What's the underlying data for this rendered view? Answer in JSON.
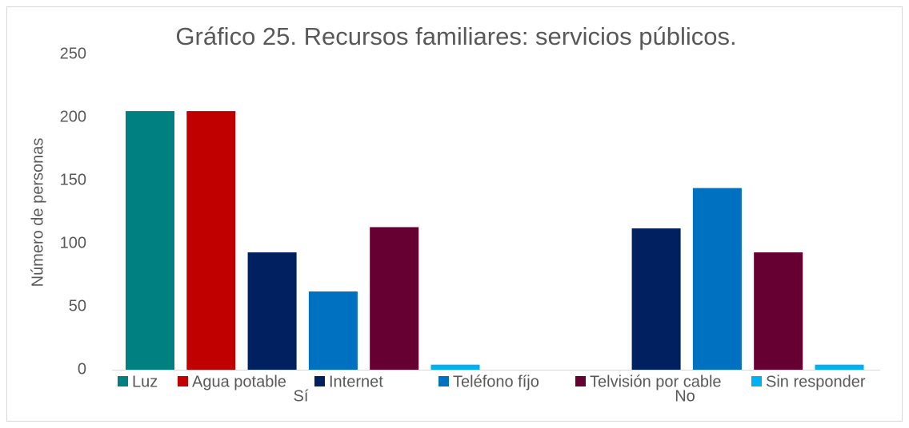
{
  "chart_data": {
    "type": "bar",
    "title": "Gráfico 25. Recursos familiares: servicios públicos.",
    "y_label": "Número de personas",
    "categories": [
      "Sí",
      "No"
    ],
    "series": [
      {
        "name": "Luz",
        "color": "#008080",
        "values": [
          205,
          0
        ]
      },
      {
        "name": "Agua potable",
        "color": "#c00000",
        "values": [
          205,
          0
        ]
      },
      {
        "name": "Internet",
        "color": "#002060",
        "values": [
          93,
          112
        ]
      },
      {
        "name": "Teléfono fíjo",
        "color": "#0070c0",
        "values": [
          62,
          144
        ]
      },
      {
        "name": "Telvisión por cable",
        "color": "#660033",
        "values": [
          113,
          93
        ]
      },
      {
        "name": "Sin responder",
        "color": "#00b0f0",
        "values": [
          4,
          4
        ]
      }
    ],
    "ylim": [
      0,
      250
    ],
    "yticks": [
      0,
      50,
      100,
      150,
      200,
      250
    ],
    "grid": false,
    "legend": "bottom"
  }
}
